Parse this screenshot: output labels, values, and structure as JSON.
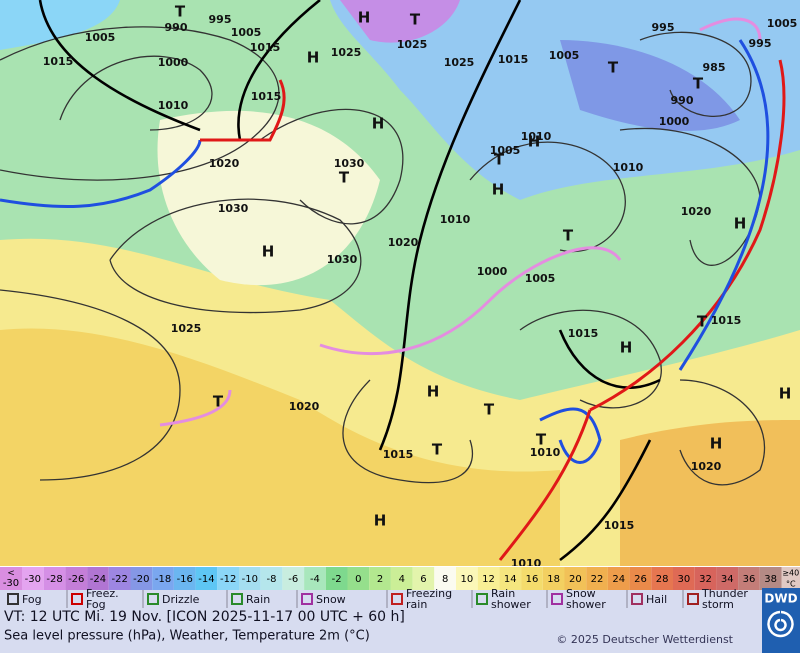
{
  "map": {
    "labels": [
      "1005",
      "990",
      "995",
      "1015",
      "1000",
      "1010",
      "1015",
      "1005",
      "1025",
      "1025",
      "1025",
      "1015",
      "1005",
      "995",
      "1005",
      "995",
      "985",
      "990",
      "1000",
      "1015",
      "1020",
      "1030",
      "1030",
      "1010",
      "1005",
      "1010",
      "1020",
      "1010",
      "1020",
      "1030",
      "1000",
      "1005",
      "1025",
      "1015",
      "1015",
      "1020",
      "1015",
      "1010",
      "1020",
      "1015",
      "1010",
      "T",
      "H",
      "T",
      "H",
      "T",
      "H",
      "H",
      "T",
      "H",
      "T",
      "H",
      "T",
      "H",
      "T",
      "H",
      "T",
      "H",
      "T",
      "T",
      "T",
      "T",
      "H",
      "H",
      "H"
    ]
  },
  "color_scale": {
    "low": {
      "symbol": "<",
      "value": "-30"
    },
    "values": [
      -30,
      -28,
      -26,
      -24,
      -22,
      -20,
      -18,
      -16,
      -14,
      -12,
      -10,
      -8,
      -6,
      -4,
      -2,
      0,
      2,
      4,
      6,
      8,
      10,
      12,
      14,
      16,
      18,
      20,
      22,
      24,
      26,
      28,
      30,
      32,
      34,
      36,
      38
    ],
    "high": {
      "value": "≥40",
      "unit": "°C"
    },
    "colors": [
      "#d98ee0",
      "#e4a4f0",
      "#d58fe6",
      "#c47ed8",
      "#b175d3",
      "#9d86e2",
      "#8597e6",
      "#7aa7ef",
      "#6bb6f0",
      "#5ec6f4",
      "#8bd6f7",
      "#a4def0",
      "#b5e6ec",
      "#c8eddf",
      "#a8e7bc",
      "#7ed98e",
      "#95df8c",
      "#b3e88f",
      "#cbee97",
      "#e3f4ac",
      "#fbfbf0",
      "#fbf7b8",
      "#f8ef95",
      "#f5e67f",
      "#f4dc6c",
      "#f3d061",
      "#f2c158",
      "#f0b04f",
      "#ee9d4b",
      "#ea8a4a",
      "#e67650",
      "#df6a55",
      "#d7645c",
      "#cf6a67",
      "#c47d78",
      "#b48a85",
      "#e0c9c4"
    ]
  },
  "legend": {
    "items": [
      [
        "Fog"
      ],
      [
        "Freez.",
        "Fog"
      ],
      [
        "Drizzle"
      ],
      [
        "Rain"
      ],
      [
        "Snow"
      ],
      [
        "Freezing",
        "rain"
      ],
      [
        "Rain",
        "shower"
      ],
      [
        "Snow",
        "shower"
      ],
      [
        "Hail"
      ],
      [
        "Thunder",
        "storm"
      ]
    ]
  },
  "footer": {
    "valid_time": "VT: 12 UTC Mi.  19 Nov. [ICON 2025-11-17  00 UTC + 60 h]",
    "description": "Sea level pressure (hPa), Weather, Temperature 2m (°C)",
    "copyright": "© 2025 Deutscher Wetterdienst",
    "logo": "DWD"
  }
}
